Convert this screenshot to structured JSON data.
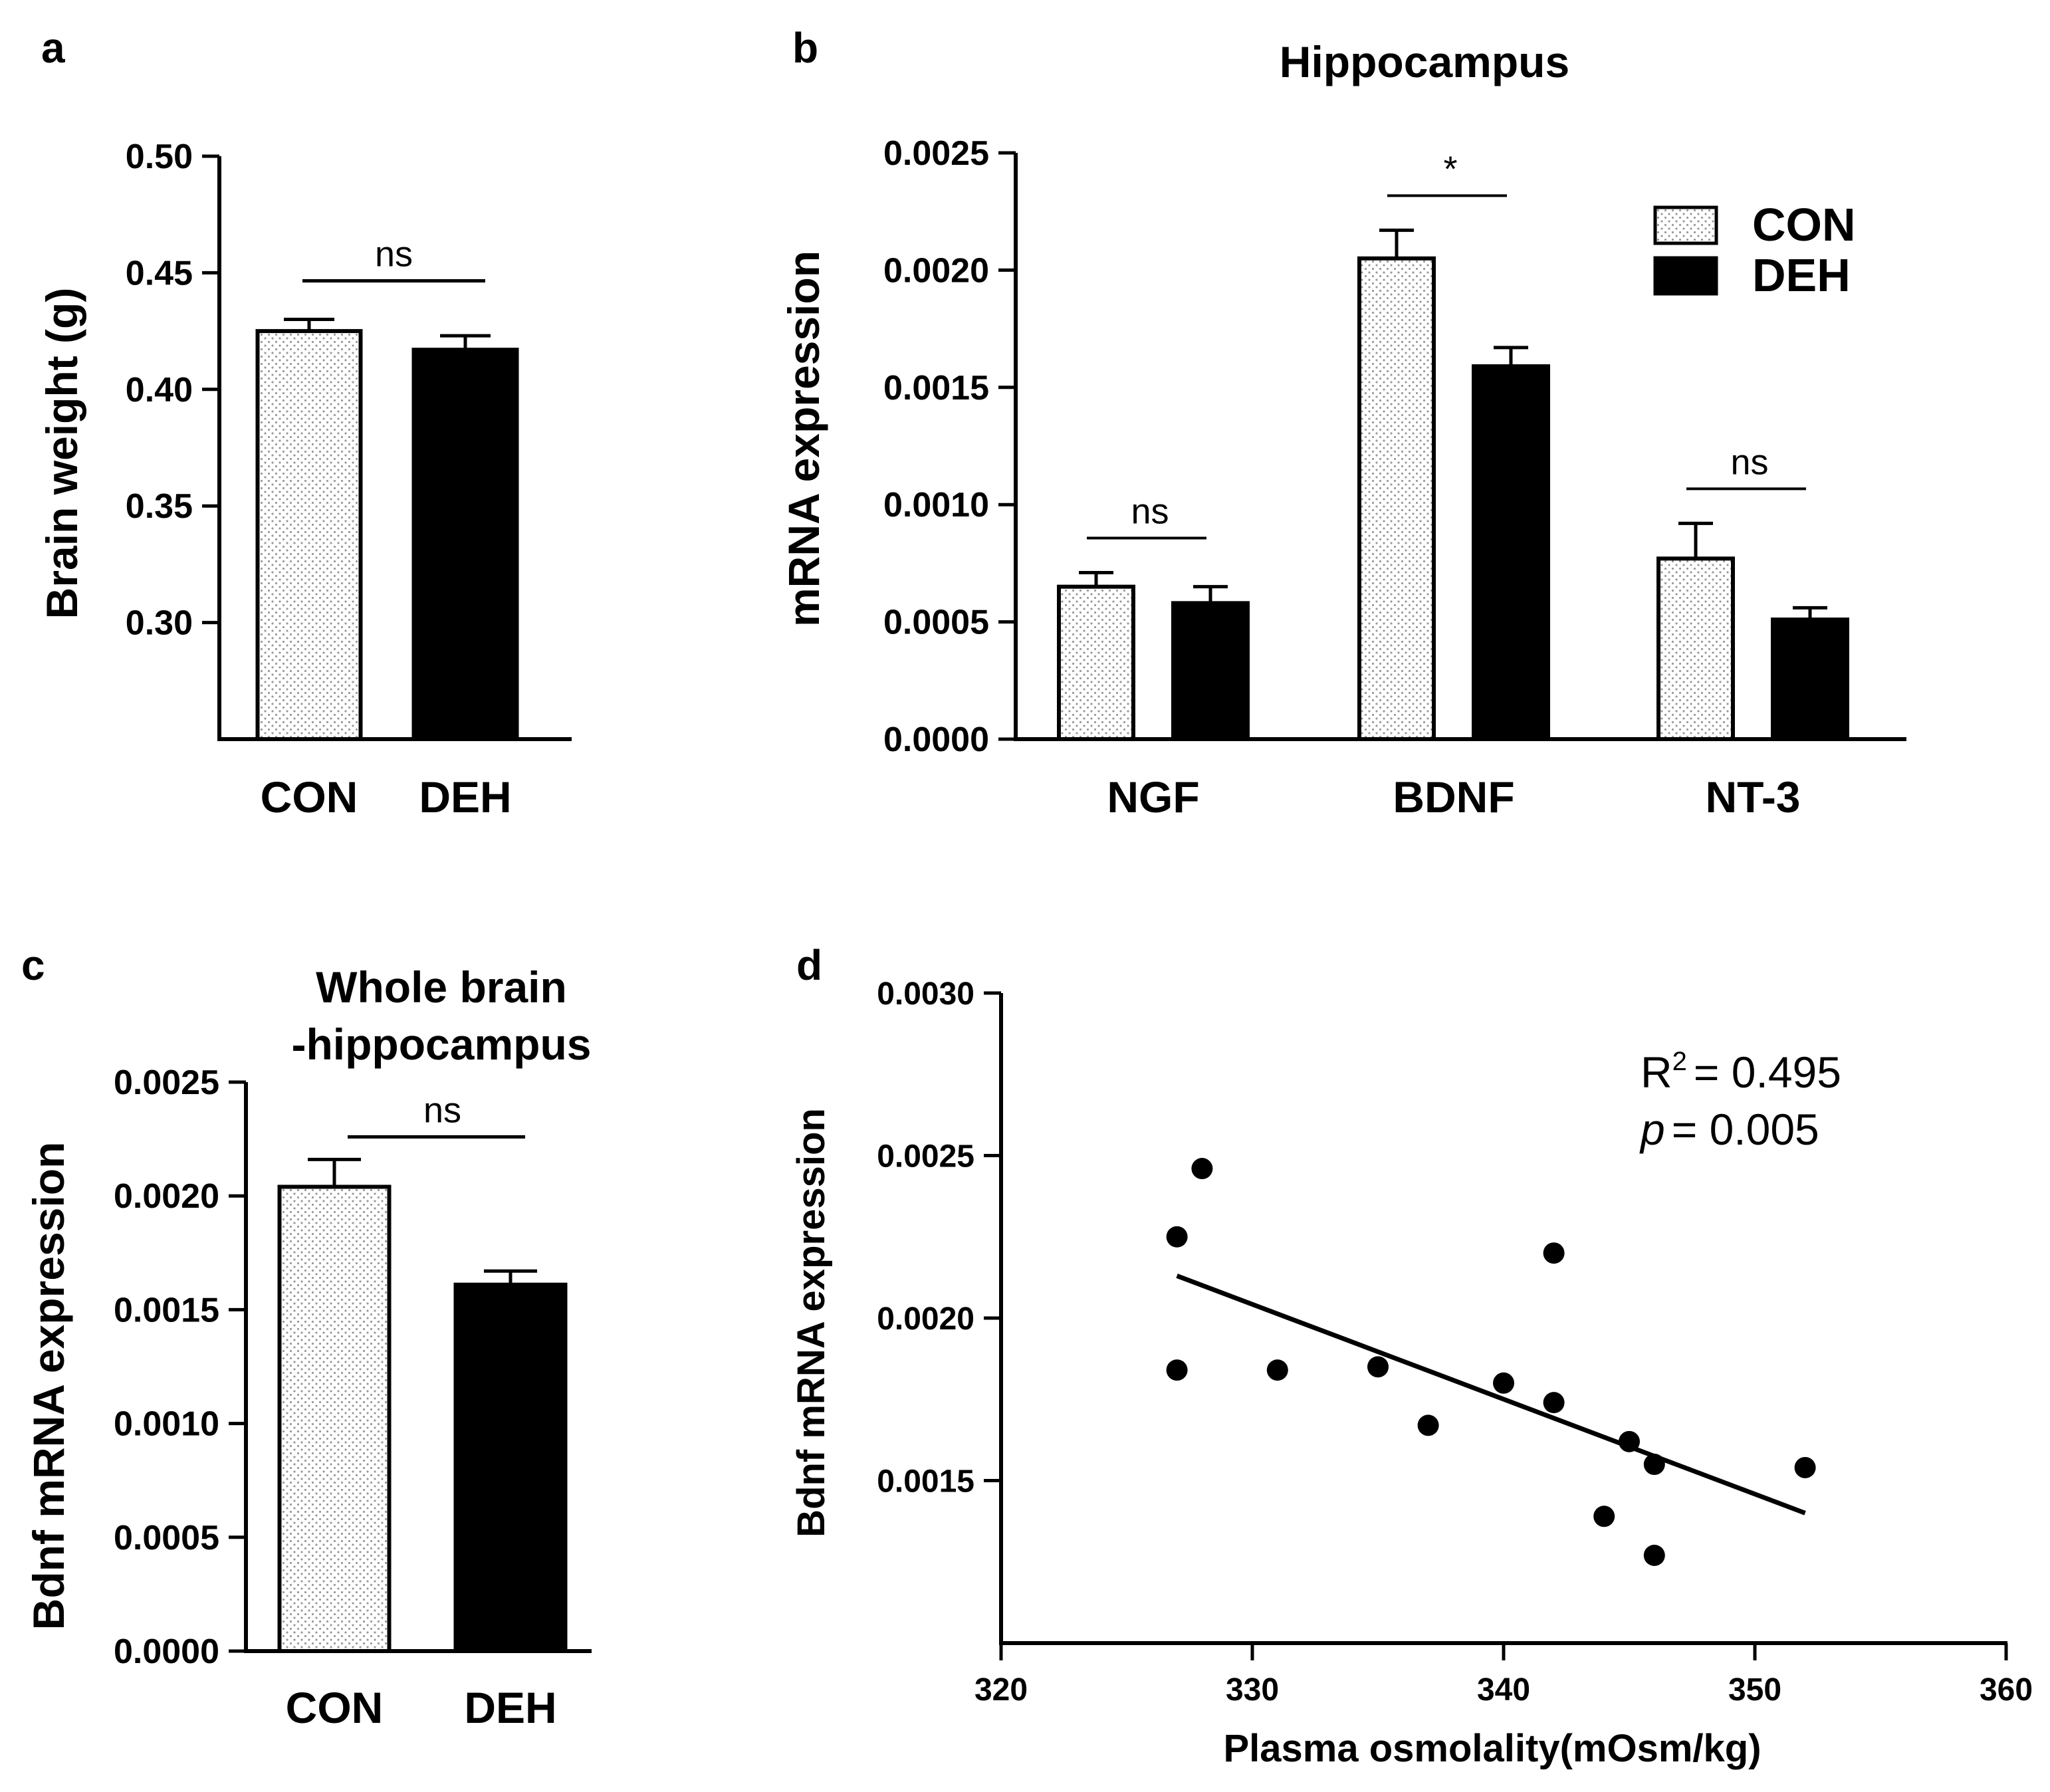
{
  "chart_data": [
    {
      "panel": "a",
      "type": "bar",
      "title": "",
      "ylabel": "Brain weight (g)",
      "ylim": [
        0.25,
        0.5
      ],
      "yticks": [
        0.3,
        0.35,
        0.4,
        0.45,
        0.5
      ],
      "ytick_labels": [
        "0.30",
        "0.35",
        "0.40",
        "0.45",
        "0.50"
      ],
      "categories": [
        "CON",
        "DEH"
      ],
      "values": [
        0.425,
        0.417
      ],
      "errors": [
        0.005,
        0.006
      ],
      "fills": [
        "dotted",
        "black"
      ],
      "significance": [
        {
          "from": 0,
          "to": 1,
          "label": "ns"
        }
      ]
    },
    {
      "panel": "b",
      "type": "bar",
      "title": "Hippocampus",
      "ylabel": "mRNA expression",
      "ylim": [
        0,
        0.0025
      ],
      "yticks": [
        0,
        0.0005,
        0.001,
        0.0015,
        0.002,
        0.0025
      ],
      "ytick_labels": [
        "0.0000",
        "0.0005",
        "0.0010",
        "0.0015",
        "0.0020",
        "0.0025"
      ],
      "categories": [
        "NGF",
        "BDNF",
        "NT-3"
      ],
      "series": [
        {
          "name": "CON",
          "fill": "dotted",
          "values": [
            0.00065,
            0.00205,
            0.00077
          ],
          "errors": [
            6e-05,
            0.00012,
            0.00015
          ]
        },
        {
          "name": "DEH",
          "fill": "black",
          "values": [
            0.00058,
            0.00159,
            0.00051
          ],
          "errors": [
            7e-05,
            8e-05,
            5e-05
          ]
        }
      ],
      "significance": [
        "ns",
        "*",
        "ns"
      ],
      "legend": [
        "CON",
        "DEH"
      ],
      "legend_position": "top-right"
    },
    {
      "panel": "c",
      "type": "bar",
      "title": "Whole brain\n-hippocampus",
      "title_lines": [
        "Whole brain",
        "-hippocampus"
      ],
      "ylabel": "Bdnf mRNA expression",
      "ylim": [
        0,
        0.0025
      ],
      "yticks": [
        0,
        0.0005,
        0.001,
        0.0015,
        0.002,
        0.0025
      ],
      "ytick_labels": [
        "0.0000",
        "0.0005",
        "0.0010",
        "0.0015",
        "0.0020",
        "0.0025"
      ],
      "categories": [
        "CON",
        "DEH"
      ],
      "values": [
        0.00204,
        0.00161
      ],
      "errors": [
        0.00012,
        6e-05
      ],
      "fills": [
        "dotted",
        "black"
      ],
      "significance": [
        {
          "from": 0,
          "to": 1,
          "label": "ns"
        }
      ]
    },
    {
      "panel": "d",
      "type": "scatter",
      "xlabel": "Plasma osmolality(mOsm/kg)",
      "ylabel": "Bdnf mRNA expression",
      "xlim": [
        320,
        360
      ],
      "ylim": [
        0.001,
        0.003
      ],
      "xticks": [
        320,
        330,
        340,
        350,
        360
      ],
      "xtick_labels": [
        "320",
        "330",
        "340",
        "350",
        "360"
      ],
      "yticks": [
        0.0015,
        0.002,
        0.0025,
        0.003
      ],
      "ytick_labels": [
        "0.0015",
        "0.0020",
        "0.0025",
        "0.0030"
      ],
      "points": [
        [
          327,
          0.00225
        ],
        [
          328,
          0.00246
        ],
        [
          327,
          0.00184
        ],
        [
          331,
          0.00184
        ],
        [
          335,
          0.00185
        ],
        [
          337,
          0.00167
        ],
        [
          340,
          0.0018
        ],
        [
          342,
          0.0022
        ],
        [
          342,
          0.00174
        ],
        [
          344,
          0.00139
        ],
        [
          345,
          0.00162
        ],
        [
          346,
          0.00155
        ],
        [
          346,
          0.00127
        ],
        [
          352,
          0.00154
        ]
      ],
      "fit_line": {
        "x": [
          327,
          352
        ],
        "y": [
          0.00213,
          0.0014
        ]
      },
      "r2_label": "= 0.495",
      "p_label": "= 0.005",
      "stat_r_symbol": "R",
      "stat_superscript": "2",
      "stat_p_symbol": "p"
    }
  ]
}
